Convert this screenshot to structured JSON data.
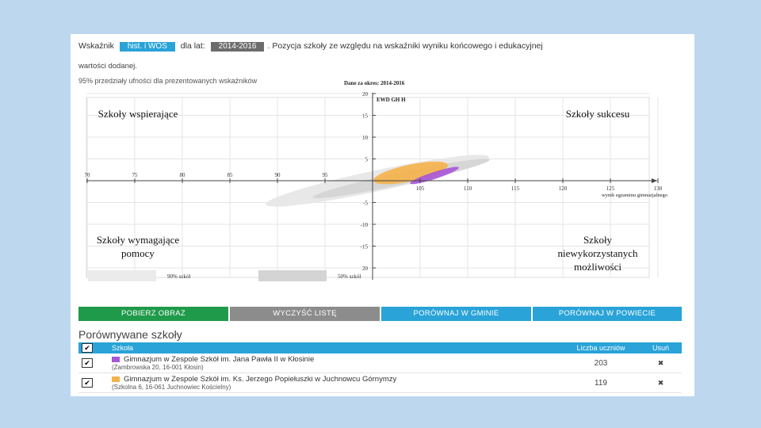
{
  "header": {
    "label_prefix": "Wskaźnik",
    "indicator": "hist. i WOS",
    "label_mid": "dla lat:",
    "years": "2014-2016",
    "title_rest": ". Pozycja szkoły ze względu na wskaźniki wyniku końcowego i edukacyjnej",
    "title_cont": "wartości dodanej.",
    "subtitle": "95% przedziały ufności dla prezentowanych wskaźników"
  },
  "quadrants": {
    "top_left": "Szkoły wspierające",
    "top_right": "Szkoły sukcesu",
    "bottom_left": "Szkoły wymagające pomocy",
    "bottom_right": "Szkoły niewykorzystanych możliwości"
  },
  "chart_data": {
    "type": "scatter",
    "title": "Dane za okres: 2014-2016",
    "xlabel": "wynik egzaminu gimnazjalnego",
    "ylabel": "EWD GH H",
    "x_ticks": [
      "70",
      "75",
      "80",
      "85",
      "90",
      "95",
      "105",
      "110",
      "115",
      "120",
      "125",
      "130"
    ],
    "y_ticks": [
      "20",
      "15",
      "10",
      "5",
      "-5",
      "-10",
      "-15",
      "20"
    ],
    "xlim": [
      70,
      130
    ],
    "ylim": [
      -20,
      20
    ],
    "grid": true,
    "series": [
      {
        "color": "#a855d8",
        "center": [
          106.5,
          1.2
        ],
        "x_radius": 2.7,
        "y_radius": 0.8,
        "rotation": -18
      },
      {
        "color": "#f5b24a",
        "center": [
          104.0,
          1.8
        ],
        "x_radius": 4.0,
        "y_radius": 1.9,
        "rotation": -12
      }
    ],
    "confidence_regions": [
      {
        "center": [
          100.5,
          0.0
        ],
        "x_radius": 12.0,
        "y_radius": 2.4,
        "rotation": -12,
        "color": "#e8e8e8"
      },
      {
        "center": [
          103.0,
          0.5
        ],
        "x_radius": 9.5,
        "y_radius": 1.4,
        "rotation": -12,
        "color": "#d6d6d6"
      }
    ],
    "legend": [
      {
        "label": "90% szkół",
        "color": "#ebebeb"
      },
      {
        "label": "50% szkół",
        "color": "#d4d4d4"
      }
    ]
  },
  "buttons": [
    {
      "label": "POBIERZ OBRAZ",
      "color": "#1f9a4a"
    },
    {
      "label": "WYCZYŚĆ LISTĘ",
      "color": "#8c8c8c"
    },
    {
      "label": "PORÓWNAJ W GMINIE",
      "color": "#29a3d8"
    },
    {
      "label": "PORÓWNAJ W POWIECIE",
      "color": "#29a3d8"
    }
  ],
  "compare": {
    "title": "Porównywane szkoły",
    "columns": {
      "school": "Szkoła",
      "students": "Liczba uczniów",
      "remove": "Usuń"
    },
    "header_check": "✔",
    "rows": [
      {
        "check": "✔",
        "color": "#a855d8",
        "name": "Gimnazjum w Zespole Szkół im. Jana Pawła II w Kłosinie",
        "address": "(Zambrowska 20, 16-001 Kłosin)",
        "students": "203",
        "remove": "✖"
      },
      {
        "check": "✔",
        "color": "#f5b24a",
        "name": "Gimnazjum w Zespole Szkół im. Ks. Jerzego Popiełuszki w Juchnowcu Górnymzy",
        "address": "(Szkolna 6, 16-061 Juchnowiec Kościelny)",
        "students": "119",
        "remove": "✖"
      }
    ]
  }
}
